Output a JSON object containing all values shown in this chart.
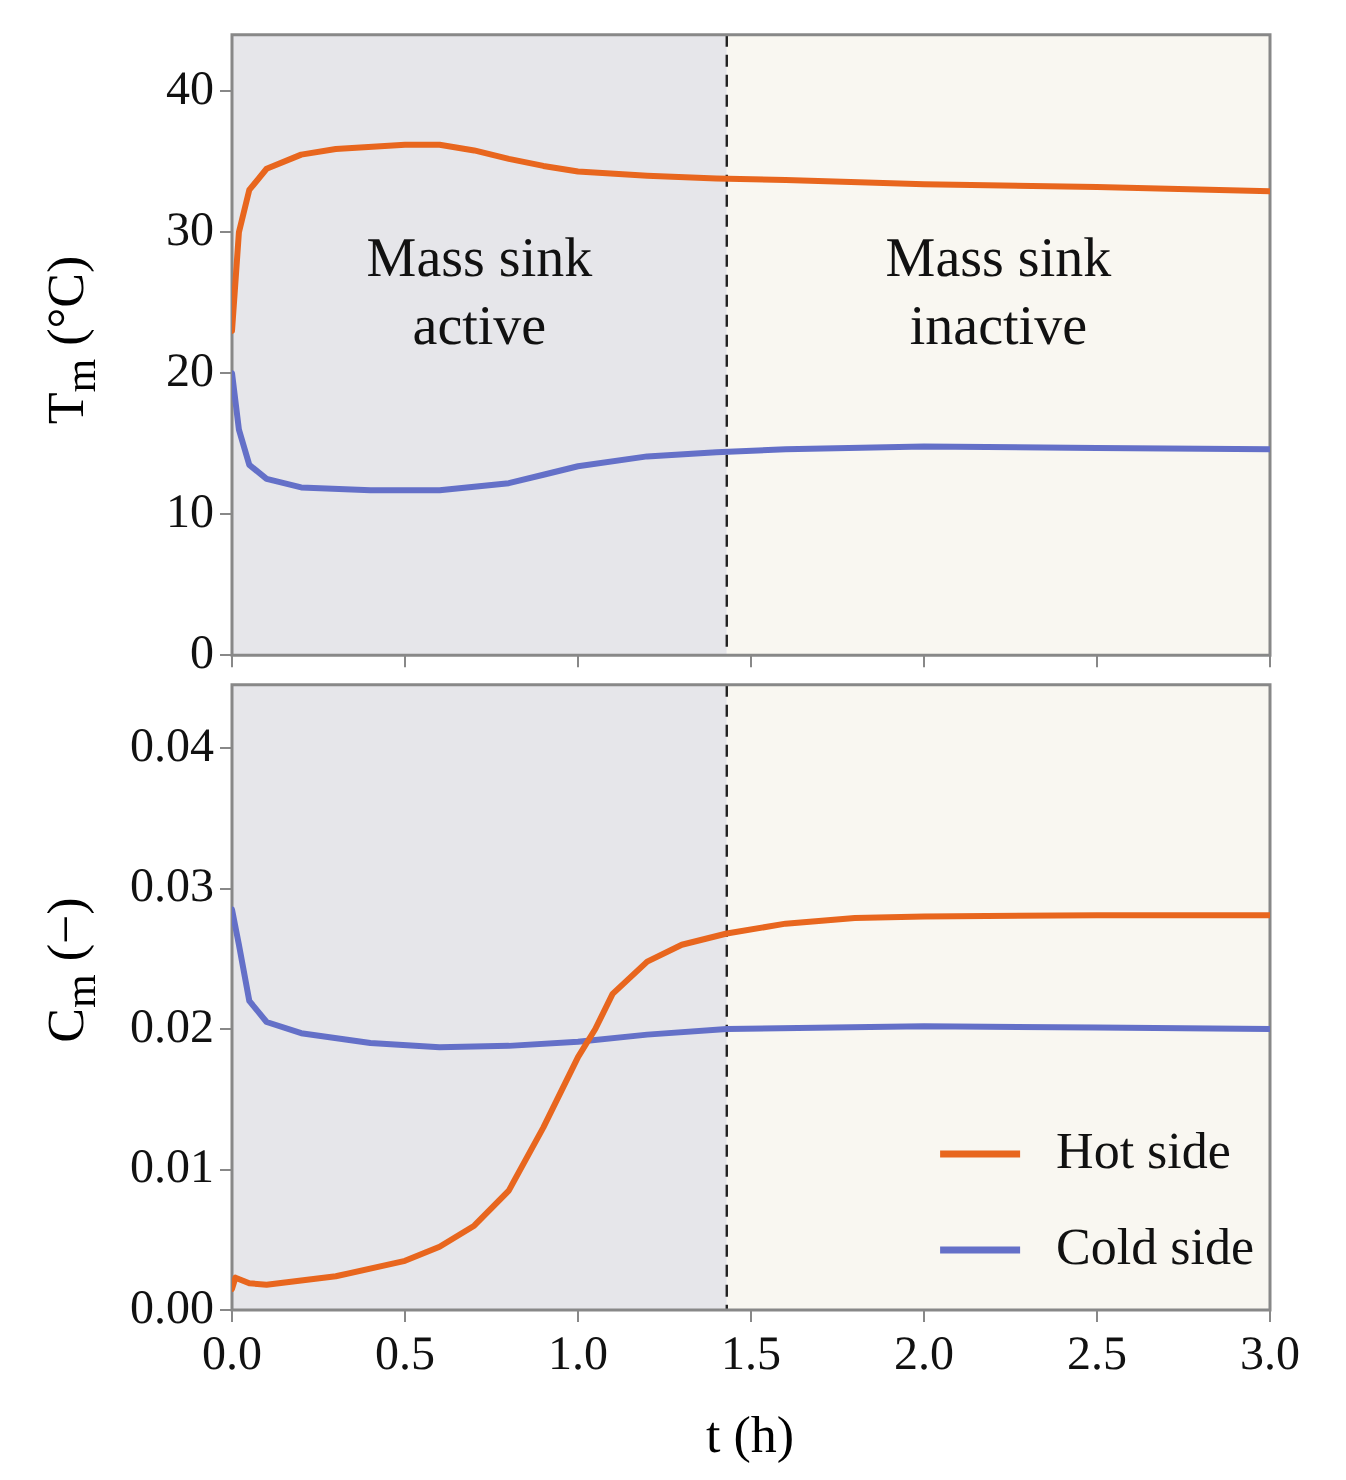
{
  "chart_data": [
    {
      "type": "line",
      "ylabel": "T$_{m}$ (°C)",
      "xlim": [
        0,
        3
      ],
      "xticks": [
        0,
        0.5,
        1,
        1.5,
        2,
        2.5,
        3
      ],
      "ylim": [
        0,
        44
      ],
      "yticks": [
        0,
        10,
        20,
        30,
        40
      ],
      "tick_labels": "y",
      "grid": false,
      "legend": false,
      "marker": "none",
      "line_style": "solid",
      "bands": [
        {
          "axis": "x",
          "from": 0,
          "to": 1.43,
          "color": "#e6e6ea"
        },
        {
          "axis": "x",
          "from": 1.43,
          "to": 3,
          "color": "#f9f7f1"
        }
      ],
      "ref_lines": [
        {
          "axis": "x",
          "value": 1.43,
          "color": "#222222",
          "line_style": "dashed"
        }
      ],
      "annotations": [
        "Mass sink active",
        "Mass sink inactive"
      ],
      "series": [
        {
          "color": "#e8661e",
          "x": [
            0,
            0.02,
            0.05,
            0.1,
            0.2,
            0.3,
            0.5,
            0.6,
            0.7,
            0.8,
            0.9,
            1.0,
            1.2,
            1.4,
            1.6,
            2.0,
            2.5,
            3.0
          ],
          "values": [
            23,
            30,
            33,
            34.5,
            35.5,
            35.9,
            36.2,
            36.2,
            35.8,
            35.2,
            34.7,
            34.3,
            34,
            33.8,
            33.7,
            33.4,
            33.2,
            32.9
          ]
        },
        {
          "color": "#6470c8",
          "x": [
            0,
            0.02,
            0.05,
            0.1,
            0.2,
            0.4,
            0.6,
            0.8,
            0.9,
            1.0,
            1.2,
            1.4,
            1.6,
            2.0,
            2.5,
            3.0
          ],
          "values": [
            20,
            16,
            13.5,
            12.5,
            11.9,
            11.7,
            11.7,
            12.2,
            12.8,
            13.4,
            14.1,
            14.4,
            14.6,
            14.8,
            14.7,
            14.6
          ]
        }
      ]
    },
    {
      "type": "line",
      "xlabel": "t (h)",
      "ylabel": "C$_{m}$ (−)",
      "xlim": [
        0,
        3
      ],
      "xticks": [
        {
          "value": 0,
          "label": "0.0"
        },
        {
          "value": 0.5,
          "label": "0.5"
        },
        {
          "value": 1,
          "label": "1.0"
        },
        {
          "value": 1.5,
          "label": "1.5"
        },
        {
          "value": 2,
          "label": "2.0"
        },
        {
          "value": 2.5,
          "label": "2.5"
        },
        {
          "value": 3,
          "label": "3.0"
        }
      ],
      "ylim": [
        0,
        0.0445
      ],
      "yticks": [
        {
          "value": 0,
          "label": "0.00"
        },
        {
          "value": 0.01,
          "label": "0.01"
        },
        {
          "value": 0.02,
          "label": "0.02"
        },
        {
          "value": 0.03,
          "label": "0.03"
        },
        {
          "value": 0.04,
          "label": "0.04"
        }
      ],
      "grid": false,
      "legend": "bottom right",
      "marker": "none",
      "line_style": "solid",
      "bands": [
        {
          "axis": "x",
          "from": 0,
          "to": 1.43,
          "color": "#e6e6ea"
        },
        {
          "axis": "x",
          "from": 1.43,
          "to": 3,
          "color": "#f9f7f1"
        }
      ],
      "ref_lines": [
        {
          "axis": "x",
          "value": 1.43,
          "color": "#222222",
          "line_style": "dashed"
        }
      ],
      "series": [
        {
          "name": "Hot side",
          "color": "#e8661e",
          "x": [
            0,
            0.01,
            0.05,
            0.1,
            0.3,
            0.5,
            0.6,
            0.7,
            0.8,
            0.9,
            1.0,
            1.05,
            1.1,
            1.2,
            1.3,
            1.43,
            1.6,
            1.8,
            2.0,
            2.5,
            3.0
          ],
          "values": [
            0.0015,
            0.0023,
            0.0019,
            0.0018,
            0.0024,
            0.0035,
            0.0045,
            0.006,
            0.0085,
            0.013,
            0.018,
            0.02,
            0.0225,
            0.0248,
            0.026,
            0.0268,
            0.0275,
            0.0279,
            0.028,
            0.0281,
            0.0281
          ]
        },
        {
          "name": "Cold side",
          "color": "#6470c8",
          "x": [
            0,
            0.02,
            0.05,
            0.1,
            0.2,
            0.4,
            0.6,
            0.8,
            1.0,
            1.2,
            1.43,
            2.0,
            2.5,
            3.0
          ],
          "values": [
            0.0285,
            0.026,
            0.022,
            0.0205,
            0.0197,
            0.019,
            0.0187,
            0.0188,
            0.0191,
            0.0196,
            0.02,
            0.0202,
            0.0201,
            0.02
          ]
        }
      ]
    }
  ]
}
